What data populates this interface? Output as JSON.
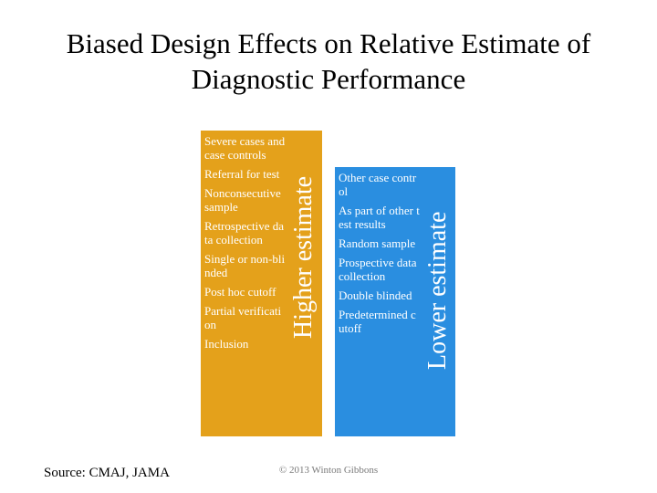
{
  "title": {
    "line1": "Biased Design Effects on Relative Estimate of",
    "line2": "Diagnostic Performance"
  },
  "higher": {
    "label": "Higher estimate",
    "color": "#e4a11b",
    "items": [
      "Severe cases and case controls",
      "Referral for test",
      "Nonconsecutive sample",
      "Retrospective data collection",
      "Single or non-blinded",
      "Post hoc cutoff",
      "Partial verification",
      "Inclusion"
    ]
  },
  "lower": {
    "label": "Lower estimate",
    "color": "#2a8ee0",
    "items": [
      "Other case control",
      "As part of other test results",
      "Random sample",
      "Prospective data collection",
      "Double blinded",
      "Predetermined cutoff"
    ]
  },
  "footer": {
    "source": "Source: CMAJ, JAMA",
    "copyright": "© 2013 Winton Gibbons"
  }
}
